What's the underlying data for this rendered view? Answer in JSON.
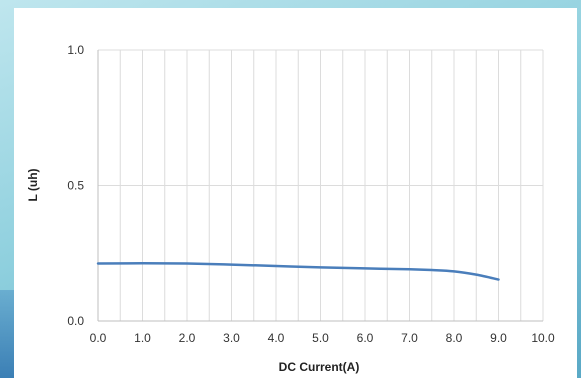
{
  "chart_data": {
    "type": "line",
    "xlabel": "DC Current(A)",
    "ylabel": "L (uh)",
    "xlim": [
      0,
      10
    ],
    "ylim": [
      0,
      1
    ],
    "x_ticks": [
      "0.0",
      "1.0",
      "2.0",
      "3.0",
      "4.0",
      "5.0",
      "6.0",
      "7.0",
      "8.0",
      "9.0",
      "10.0"
    ],
    "y_ticks": [
      "0.0",
      "0.5",
      "1.0"
    ],
    "grid": "vertical",
    "series": [
      {
        "color": "#4a7ebb",
        "x": [
          0,
          1,
          2,
          3,
          4,
          5,
          6,
          7,
          7.5,
          8,
          8.5,
          9
        ],
        "y": [
          0.212,
          0.213,
          0.212,
          0.208,
          0.203,
          0.198,
          0.194,
          0.191,
          0.188,
          0.183,
          0.171,
          0.153
        ]
      }
    ]
  }
}
